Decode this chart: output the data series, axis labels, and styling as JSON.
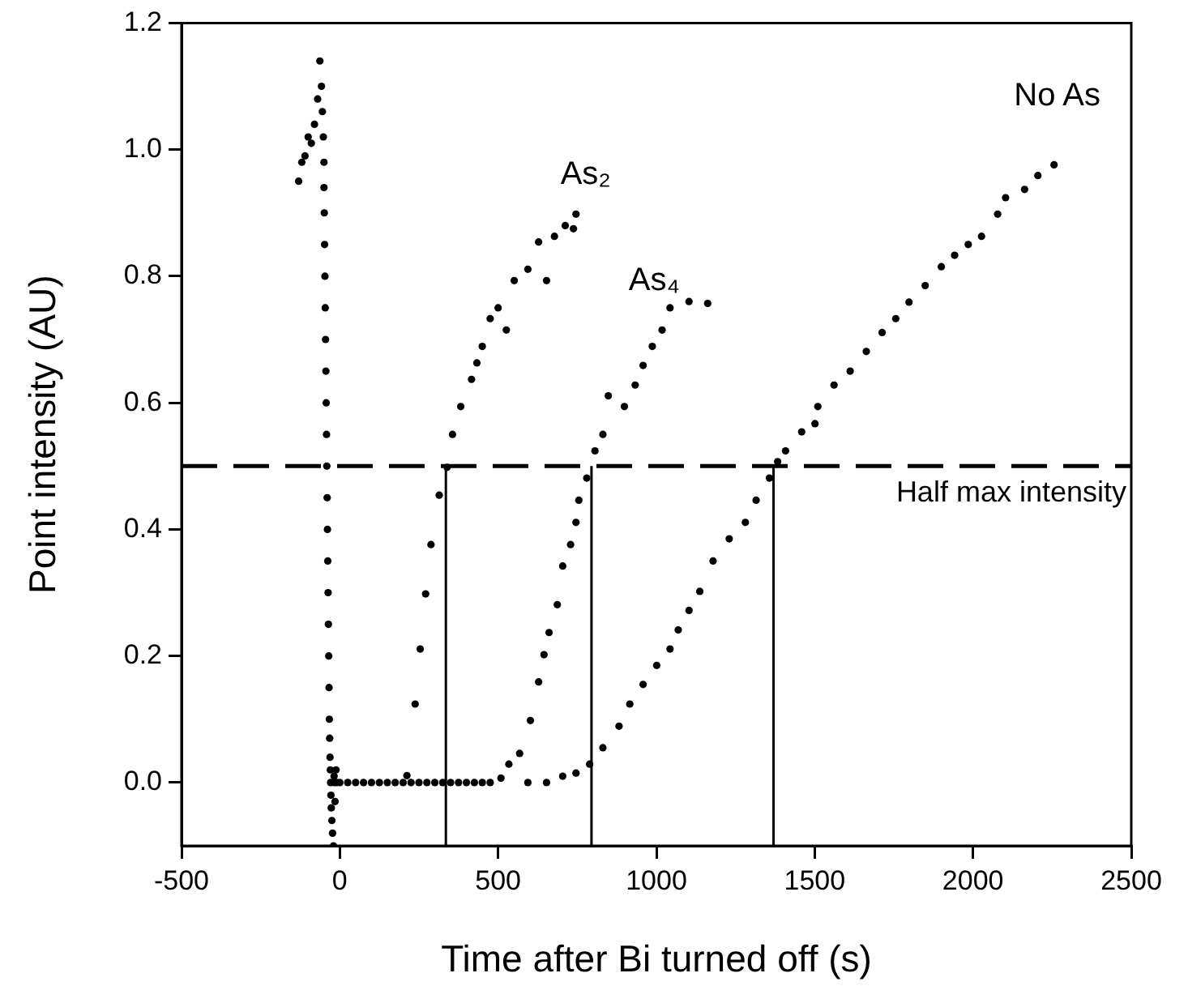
{
  "chart_data": {
    "type": "scatter",
    "xlabel": "Time after Bi turned off (s)",
    "ylabel": "Point intensity (AU)",
    "marker": "circle",
    "xlim": [
      -500,
      2500
    ],
    "xticks": [
      -500,
      0,
      500,
      1000,
      1500,
      2000,
      2500
    ],
    "ylim": [
      -0.1,
      1.2
    ],
    "yticks": [
      {
        "value": 0,
        "label": "0.0"
      },
      {
        "value": 0.2,
        "label": "0.2"
      },
      {
        "value": 0.4,
        "label": "0.4"
      },
      {
        "value": 0.6,
        "label": "0.6"
      },
      {
        "value": 0.8,
        "label": "0.8"
      },
      {
        "value": 1,
        "label": "1.0"
      },
      {
        "value": 1.2,
        "label": "1.2"
      }
    ],
    "series": [
      {
        "color": "#000000",
        "x": [
          -130,
          -120,
          -110,
          -100,
          -90,
          -80,
          -70,
          -63,
          -58,
          -55,
          -52,
          -50,
          -50,
          -49,
          -48,
          -47,
          -46,
          -45,
          -44,
          -43,
          -42,
          -41,
          -40,
          -39,
          -38,
          -37,
          -36,
          -35,
          -34,
          -33,
          -32,
          -31,
          -30,
          -29,
          -28,
          -27,
          -25,
          -23,
          -20,
          -18,
          -17,
          -15,
          -12,
          -10,
          0,
          25,
          50,
          75,
          100,
          125,
          150,
          175
        ],
        "values": [
          0.95,
          0.98,
          0.99,
          1.02,
          1.01,
          1.04,
          1.08,
          1.14,
          1.1,
          1.06,
          1.02,
          0.98,
          0.94,
          0.9,
          0.85,
          0.8,
          0.75,
          0.7,
          0.65,
          0.6,
          0.55,
          0.5,
          0.45,
          0.4,
          0.35,
          0.3,
          0.25,
          0.2,
          0.15,
          0.1,
          0.07,
          0.04,
          0.02,
          0.0,
          -0.02,
          -0.04,
          -0.06,
          -0.08,
          -0.1,
          0.01,
          0.0,
          -0.03,
          0.02,
          0.0,
          0.0,
          0.0,
          0.0,
          0.0,
          0.0,
          0.0,
          0.0,
          0.0
        ]
      },
      {
        "color": "#000000",
        "x": [
          200,
          212,
          238,
          254,
          271,
          288,
          314,
          339,
          356,
          382,
          416,
          433,
          450,
          475,
          500,
          526,
          551,
          594,
          628,
          653,
          678,
          712,
          738,
          746
        ],
        "values": [
          0.0,
          0.011,
          0.124,
          0.211,
          0.298,
          0.376,
          0.454,
          0.498,
          0.55,
          0.594,
          0.637,
          0.663,
          0.689,
          0.733,
          0.75,
          0.715,
          0.793,
          0.811,
          0.854,
          0.793,
          0.863,
          0.88,
          0.875,
          0.898
        ]
      },
      {
        "color": "#000000",
        "x": [
          225,
          250,
          275,
          300,
          325,
          350,
          375,
          400,
          425,
          450,
          475,
          509,
          534,
          568,
          602,
          628,
          645,
          661,
          687,
          704,
          729,
          746,
          755,
          780,
          806,
          831,
          848,
          899,
          933,
          958,
          987,
          1018,
          1043,
          1103,
          1162
        ],
        "values": [
          0.0,
          0.0,
          0.0,
          0.0,
          0.0,
          0.0,
          0.0,
          0.0,
          0.0,
          0.0,
          0.0,
          0.007,
          0.029,
          0.046,
          0.098,
          0.159,
          0.202,
          0.237,
          0.281,
          0.342,
          0.376,
          0.411,
          0.446,
          0.481,
          0.524,
          0.55,
          0.611,
          0.594,
          0.628,
          0.659,
          0.689,
          0.715,
          0.75,
          0.76,
          0.757
        ]
      },
      {
        "color": "#000000",
        "x": [
          594,
          653,
          704,
          746,
          789,
          831,
          882,
          916,
          958,
          1001,
          1043,
          1069,
          1103,
          1137,
          1179,
          1230,
          1281,
          1315,
          1357,
          1383,
          1408,
          1459,
          1501,
          1510,
          1561,
          1612,
          1663,
          1713,
          1756,
          1798,
          1849,
          1900,
          1942,
          1985,
          2027,
          2078,
          2103,
          2163,
          2205,
          2256
        ],
        "values": [
          0.0,
          0.0,
          0.01,
          0.015,
          0.029,
          0.055,
          0.089,
          0.124,
          0.155,
          0.185,
          0.211,
          0.241,
          0.272,
          0.302,
          0.35,
          0.385,
          0.411,
          0.446,
          0.481,
          0.507,
          0.524,
          0.554,
          0.567,
          0.594,
          0.628,
          0.65,
          0.681,
          0.711,
          0.733,
          0.759,
          0.785,
          0.815,
          0.833,
          0.85,
          0.863,
          0.898,
          0.924,
          0.937,
          0.959,
          0.976
        ]
      },
      {
        "type": "line",
        "marker": "none",
        "color": "#000000",
        "x": [
          335,
          335
        ],
        "values": [
          -0.1,
          0.5
        ]
      },
      {
        "type": "line",
        "marker": "none",
        "color": "#000000",
        "x": [
          795,
          795
        ],
        "values": [
          -0.1,
          0.5
        ]
      },
      {
        "type": "line",
        "marker": "none",
        "color": "#000000",
        "x": [
          1370,
          1370
        ],
        "values": [
          -0.1,
          0.5
        ]
      }
    ],
    "ref_lines": [
      {
        "axis": "y",
        "value": 0.5,
        "label": "Half max intensity",
        "line_style": "dashed",
        "color": "#000000"
      }
    ],
    "annotations": [
      "As₂",
      "As₄",
      "No As"
    ]
  }
}
